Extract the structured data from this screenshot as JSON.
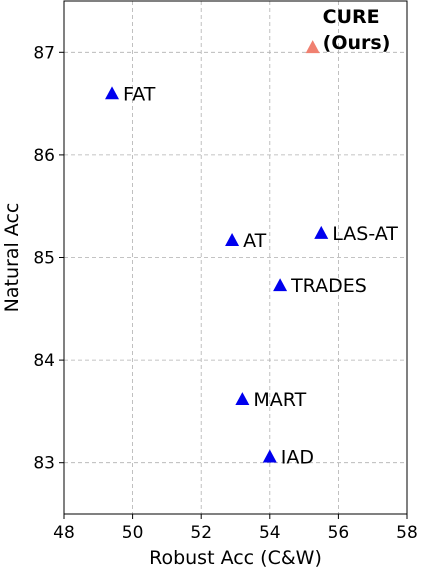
{
  "chart_data": {
    "type": "scatter",
    "title": "",
    "xlabel": "Robust Acc (C&W)",
    "ylabel": "Natural Acc",
    "xlim": [
      48,
      58
    ],
    "ylim": [
      82.5,
      87.5
    ],
    "xticks": [
      "48",
      "50",
      "52",
      "54",
      "56",
      "58"
    ],
    "yticks": [
      "83",
      "84",
      "85",
      "86",
      "87"
    ],
    "grid": true,
    "marker": "triangle-up",
    "points": [
      {
        "name": "FAT",
        "x": 49.4,
        "y": 86.6,
        "color": "#0000ee"
      },
      {
        "name": "AT",
        "x": 52.9,
        "y": 85.17,
        "color": "#0000ee"
      },
      {
        "name": "LAS-AT",
        "x": 55.5,
        "y": 85.24,
        "color": "#0000ee"
      },
      {
        "name": "TRADES",
        "x": 54.3,
        "y": 84.73,
        "color": "#0000ee"
      },
      {
        "name": "MART",
        "x": 53.2,
        "y": 83.62,
        "color": "#0000ee"
      },
      {
        "name": "IAD",
        "x": 54.0,
        "y": 83.06,
        "color": "#0000ee"
      },
      {
        "name": "CURE\n (Ours)",
        "x": 55.25,
        "y": 87.05,
        "color": "#f08070",
        "bold": true
      }
    ]
  }
}
